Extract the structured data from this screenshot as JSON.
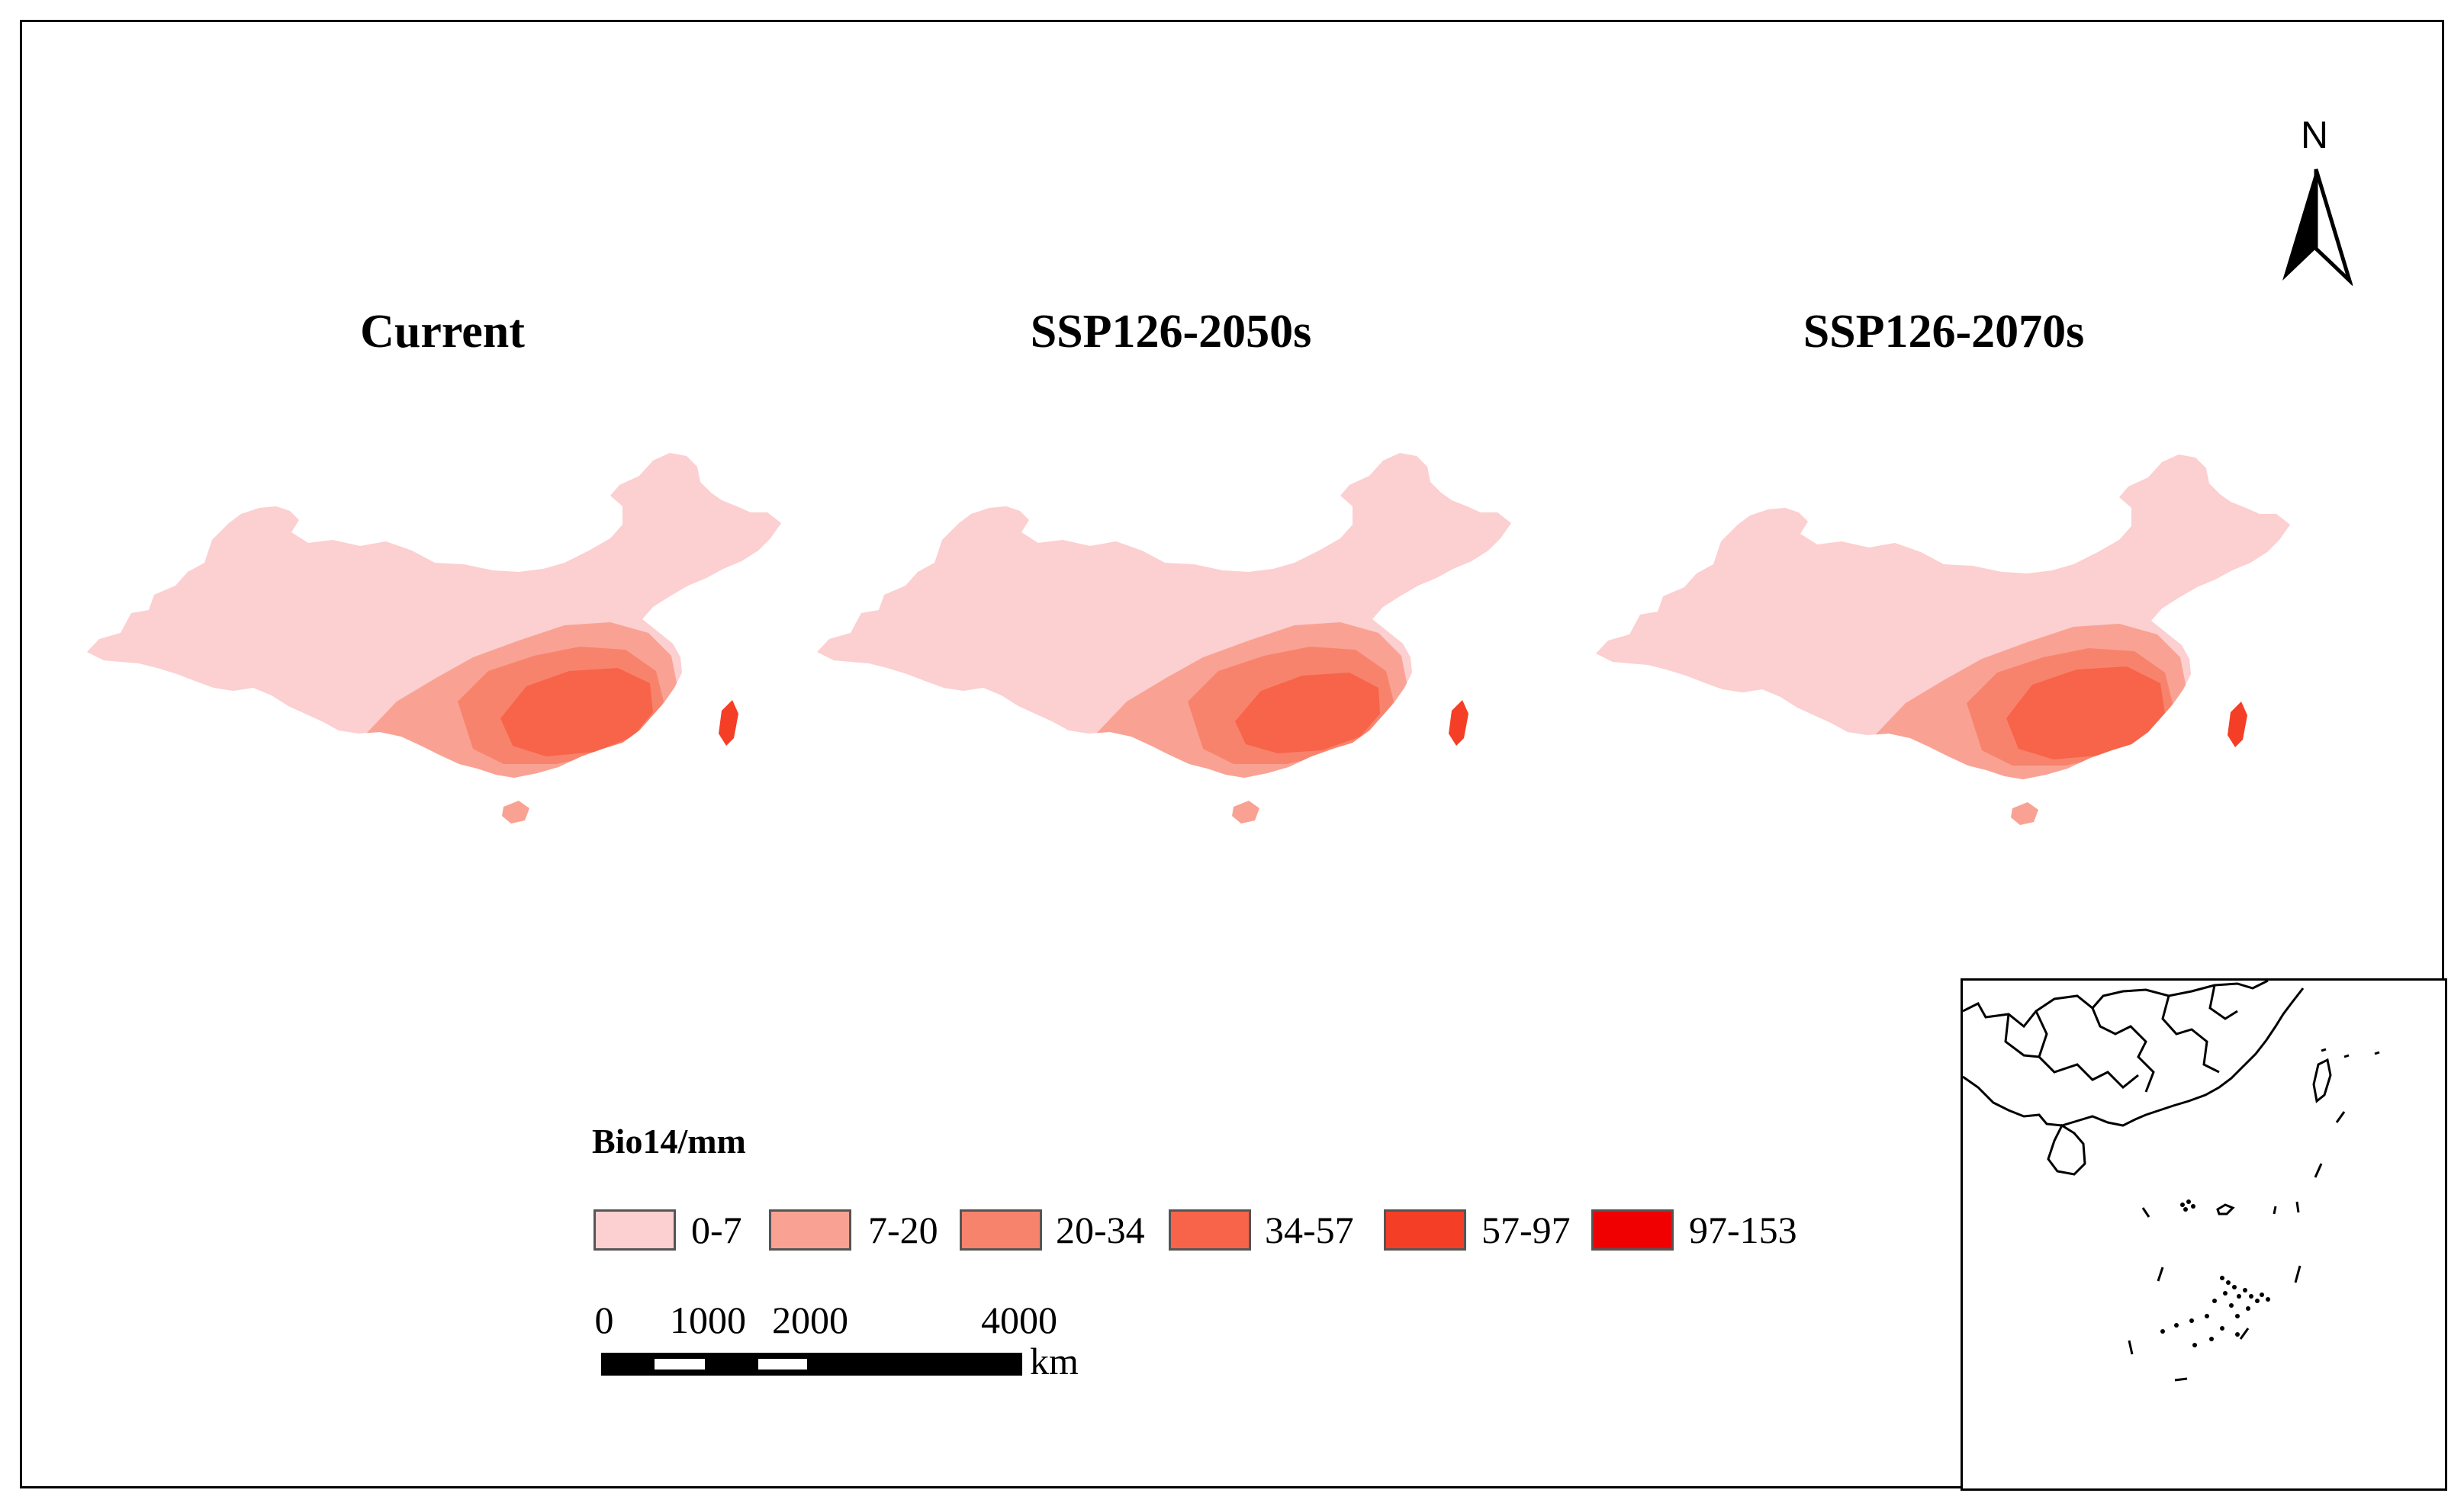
{
  "titles": {
    "current": "Current",
    "ssp2050": "SSP126-2050s",
    "ssp2070": "SSP126-2070s"
  },
  "north": "N",
  "legend": {
    "title": "Bio14/mm",
    "classes": [
      {
        "label": "0-7",
        "color": "#fccfd0"
      },
      {
        "label": "7-20",
        "color": "#f9a293"
      },
      {
        "label": "20-34",
        "color": "#f8836d"
      },
      {
        "label": "34-57",
        "color": "#f76449"
      },
      {
        "label": "57-97",
        "color": "#f43e26"
      },
      {
        "label": "97-153",
        "color": "#f00000"
      }
    ]
  },
  "scale": {
    "ticks": [
      "0",
      "1000",
      "2000",
      "4000"
    ],
    "unit": "km"
  }
}
